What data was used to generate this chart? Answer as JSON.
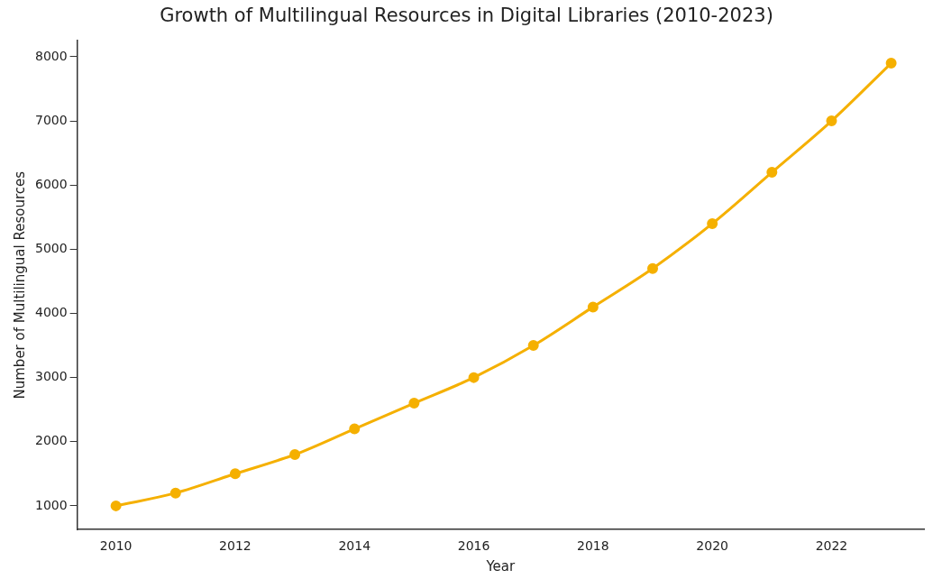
{
  "chart_data": {
    "type": "line",
    "title": "Growth of Multilingual Resources in Digital Libraries (2010-2023)",
    "xlabel": "Year",
    "ylabel": "Number of Multilingual Resources",
    "x": [
      2010,
      2011,
      2012,
      2013,
      2014,
      2015,
      2016,
      2017,
      2018,
      2019,
      2020,
      2021,
      2022,
      2023
    ],
    "series": [
      {
        "color": "#f5b000",
        "values": [
          1000,
          1200,
          1500,
          1800,
          2200,
          2600,
          3000,
          3500,
          4100,
          4700,
          5400,
          6200,
          7000,
          7900
        ]
      }
    ],
    "xlim": [
      2009.35,
      2023.55
    ],
    "xticks": [
      2010,
      2012,
      2014,
      2016,
      2018,
      2020,
      2022
    ],
    "ylim": [
      630,
      8250
    ],
    "yticks": [
      1000,
      2000,
      3000,
      4000,
      5000,
      6000,
      7000,
      8000
    ],
    "grid": false,
    "legend": false,
    "marker": "circle",
    "line_style": "solid"
  }
}
